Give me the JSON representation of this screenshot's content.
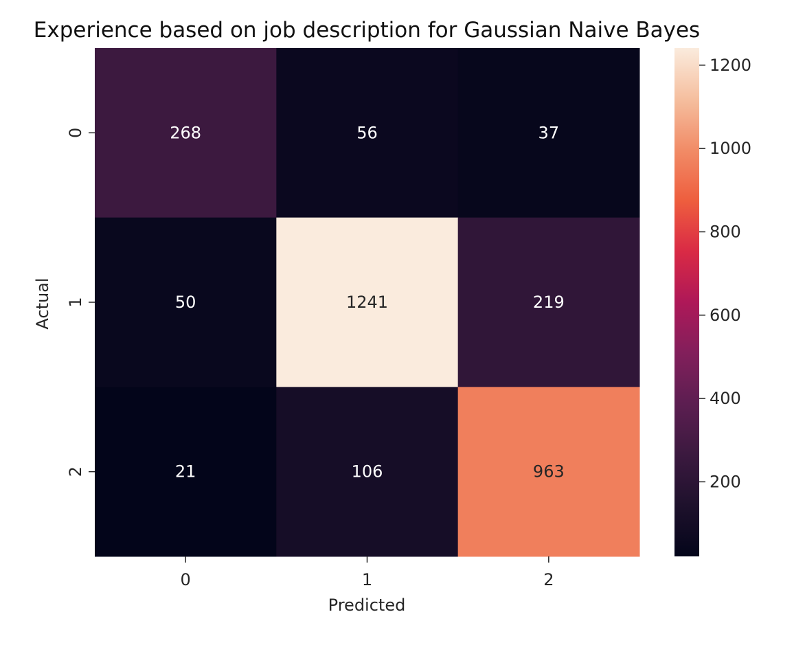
{
  "chart_data": {
    "type": "heatmap",
    "title": "Experience based on job description for Gaussian Naive Bayes",
    "xlabel": "Predicted",
    "ylabel": "Actual",
    "x_categories": [
      "0",
      "1",
      "2"
    ],
    "y_categories": [
      "0",
      "1",
      "2"
    ],
    "values": [
      [
        268,
        56,
        37
      ],
      [
        50,
        1241,
        219
      ],
      [
        21,
        106,
        963
      ]
    ],
    "colormap": "rocket",
    "value_range": [
      21,
      1241
    ],
    "colorbar": {
      "ticks": [
        200,
        400,
        600,
        800,
        1000,
        1200
      ],
      "tick_labels": [
        "200",
        "400",
        "600",
        "800",
        "1000",
        "1200"
      ]
    },
    "annotated": true,
    "grid": false
  }
}
